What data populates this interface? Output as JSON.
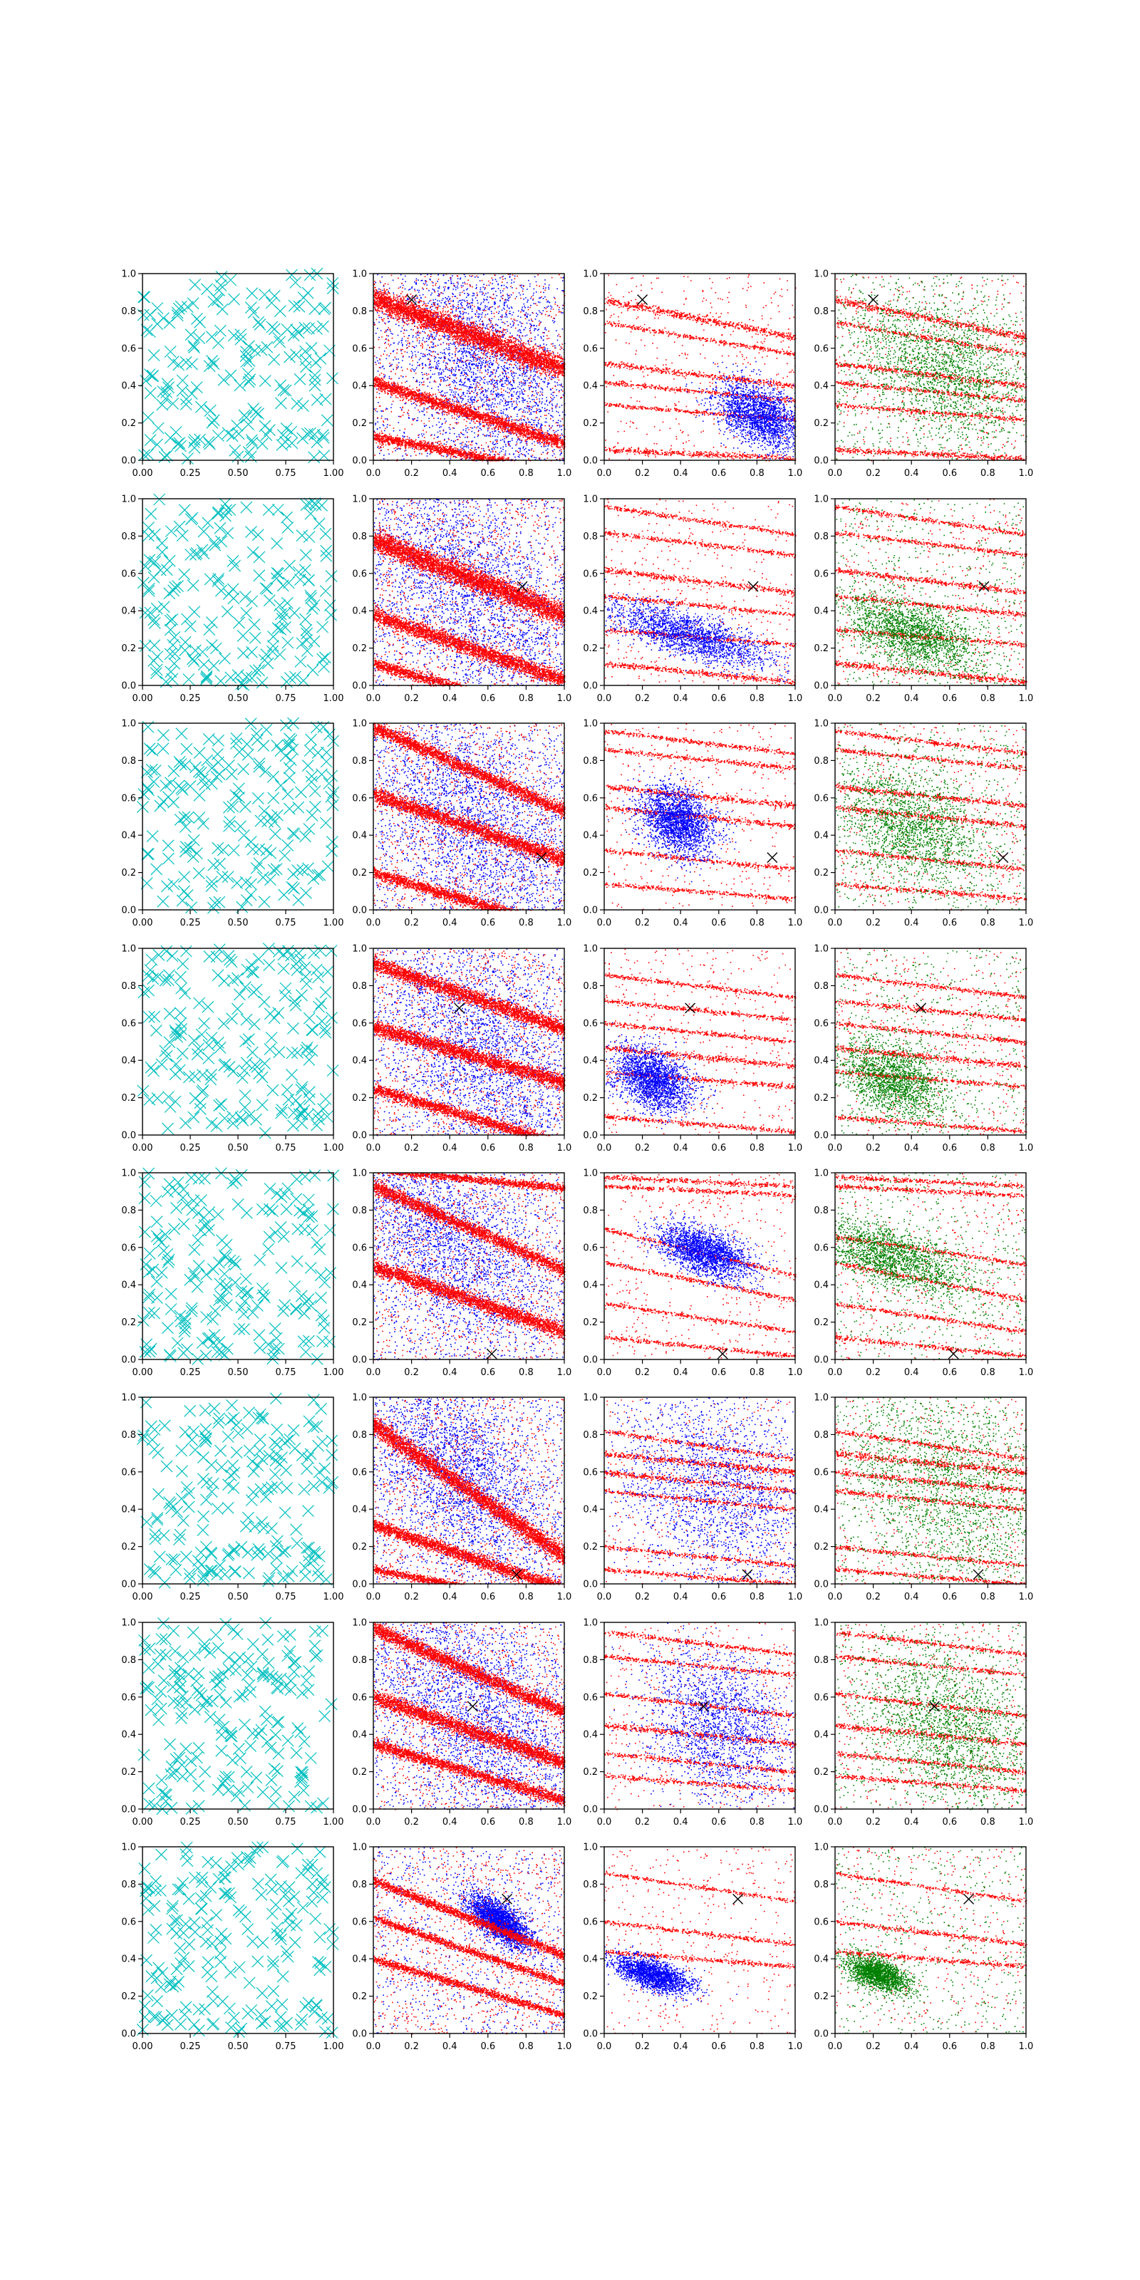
{
  "figure": {
    "title": "",
    "background": "#ffffff",
    "layout": {
      "rows": 8,
      "cols": 4
    }
  },
  "colors": {
    "uniform": "#00bfbf",
    "stripes": "#ff0000",
    "cluster_blue": "#0000ff",
    "cluster_green": "#008000",
    "target_marker": "#000000"
  },
  "chart_data": {
    "type": "scatter",
    "xlim": [
      0,
      1
    ],
    "ylim": [
      0,
      1
    ],
    "grid": false,
    "legend": "none",
    "column_descriptions": [
      "uniform random points drawn as cyan x markers",
      "red stripe samples with blue scattered samples and one black x target",
      "red stripe samples with a dense blue cluster and one black x target",
      "red stripe samples with a dense green cluster and one black x target"
    ],
    "tick_labels": {
      "col0_x": [
        "0.00",
        "0.25",
        "0.50",
        "0.75",
        "1.00"
      ],
      "col0_y": [
        "0.0",
        "0.2",
        "0.4",
        "0.6",
        "0.8",
        "1.0"
      ],
      "other_x": [
        "0.0",
        "0.2",
        "0.4",
        "0.6",
        "0.8",
        "1.0"
      ],
      "other_y": [
        "0.0",
        "0.2",
        "0.4",
        "0.6",
        "0.8",
        "1.0"
      ]
    },
    "rows": [
      {
        "target": [
          0.2,
          0.86
        ],
        "stripes_c1": [
          [
            0.87,
            0.38,
            0.06
          ],
          [
            0.42,
            0.33,
            0.035
          ],
          [
            0.13,
            0.2,
            0.025
          ]
        ],
        "blue_c1": {
          "x": 0.6,
          "y": 0.5,
          "sx": 0.25,
          "sy": 0.28
        },
        "stripes_c2": [
          [
            0.86,
            0.2,
            0.02
          ],
          [
            0.74,
            0.17,
            0.012
          ],
          [
            0.52,
            0.12,
            0.015
          ],
          [
            0.42,
            0.1,
            0.012
          ],
          [
            0.3,
            0.08,
            0.012
          ],
          [
            0.06,
            0.05,
            0.015
          ]
        ],
        "cluster_c2": {
          "x": 0.82,
          "y": 0.24,
          "sx": 0.12,
          "sy": 0.08,
          "n": 2200
        },
        "stripes_c3": [
          [
            0.86,
            0.2,
            0.02
          ],
          [
            0.74,
            0.17,
            0.012
          ],
          [
            0.52,
            0.12,
            0.015
          ],
          [
            0.42,
            0.1,
            0.012
          ],
          [
            0.3,
            0.08,
            0.012
          ],
          [
            0.06,
            0.05,
            0.015
          ]
        ],
        "cluster_c3": {
          "x": 0.55,
          "y": 0.5,
          "sx": 0.22,
          "sy": 0.18,
          "n": 1800
        }
      },
      {
        "target": [
          0.78,
          0.53
        ],
        "stripes_c1": [
          [
            0.38,
            0.35,
            0.04
          ],
          [
            0.12,
            0.3,
            0.03
          ],
          [
            0.78,
            0.4,
            0.06
          ]
        ],
        "blue_c1": {
          "x": 0.5,
          "y": 0.5,
          "sx": 0.3,
          "sy": 0.3
        },
        "stripes_c2": [
          [
            0.96,
            0.15,
            0.012
          ],
          [
            0.82,
            0.12,
            0.012
          ],
          [
            0.62,
            0.12,
            0.015
          ],
          [
            0.48,
            0.1,
            0.012
          ],
          [
            0.3,
            0.08,
            0.012
          ],
          [
            0.12,
            0.1,
            0.015
          ]
        ],
        "cluster_c2": {
          "x": 0.45,
          "y": 0.27,
          "sx": 0.22,
          "sy": 0.06,
          "n": 2000
        },
        "stripes_c3": [
          [
            0.96,
            0.15,
            0.012
          ],
          [
            0.82,
            0.12,
            0.012
          ],
          [
            0.62,
            0.12,
            0.015
          ],
          [
            0.48,
            0.1,
            0.012
          ],
          [
            0.3,
            0.08,
            0.012
          ],
          [
            0.12,
            0.1,
            0.015
          ]
        ],
        "cluster_c3": {
          "x": 0.4,
          "y": 0.28,
          "sx": 0.18,
          "sy": 0.09,
          "n": 2000
        }
      },
      {
        "target": [
          0.88,
          0.28
        ],
        "stripes_c1": [
          [
            0.98,
            0.45,
            0.035
          ],
          [
            0.62,
            0.35,
            0.04
          ],
          [
            0.2,
            0.3,
            0.03
          ]
        ],
        "blue_c1": {
          "x": 0.55,
          "y": 0.45,
          "sx": 0.3,
          "sy": 0.28
        },
        "stripes_c2": [
          [
            0.96,
            0.12,
            0.012
          ],
          [
            0.86,
            0.1,
            0.012
          ],
          [
            0.66,
            0.1,
            0.015
          ],
          [
            0.55,
            0.1,
            0.015
          ],
          [
            0.32,
            0.1,
            0.012
          ],
          [
            0.14,
            0.08,
            0.012
          ]
        ],
        "cluster_c2": {
          "x": 0.38,
          "y": 0.48,
          "sx": 0.1,
          "sy": 0.09,
          "n": 2200
        },
        "stripes_c3": [
          [
            0.96,
            0.12,
            0.012
          ],
          [
            0.86,
            0.1,
            0.012
          ],
          [
            0.66,
            0.1,
            0.015
          ],
          [
            0.55,
            0.1,
            0.015
          ],
          [
            0.32,
            0.1,
            0.012
          ],
          [
            0.14,
            0.08,
            0.012
          ]
        ],
        "cluster_c3": {
          "x": 0.4,
          "y": 0.45,
          "sx": 0.2,
          "sy": 0.15,
          "n": 1800
        }
      },
      {
        "target": [
          0.45,
          0.68
        ],
        "stripes_c1": [
          [
            0.92,
            0.35,
            0.04
          ],
          [
            0.58,
            0.3,
            0.04
          ],
          [
            0.25,
            0.3,
            0.03
          ]
        ],
        "blue_c1": {
          "x": 0.55,
          "y": 0.45,
          "sx": 0.3,
          "sy": 0.3
        },
        "stripes_c2": [
          [
            0.86,
            0.12,
            0.012
          ],
          [
            0.72,
            0.1,
            0.012
          ],
          [
            0.6,
            0.1,
            0.012
          ],
          [
            0.47,
            0.1,
            0.015
          ],
          [
            0.34,
            0.08,
            0.012
          ],
          [
            0.1,
            0.08,
            0.012
          ]
        ],
        "cluster_c2": {
          "x": 0.25,
          "y": 0.3,
          "sx": 0.1,
          "sy": 0.08,
          "n": 2200
        },
        "stripes_c3": [
          [
            0.86,
            0.12,
            0.012
          ],
          [
            0.72,
            0.1,
            0.012
          ],
          [
            0.6,
            0.1,
            0.012
          ],
          [
            0.47,
            0.1,
            0.015
          ],
          [
            0.34,
            0.08,
            0.012
          ],
          [
            0.1,
            0.08,
            0.012
          ]
        ],
        "cluster_c3": {
          "x": 0.3,
          "y": 0.3,
          "sx": 0.14,
          "sy": 0.1,
          "n": 1800
        }
      },
      {
        "target": [
          0.62,
          0.03
        ],
        "stripes_c1": [
          [
            0.93,
            0.45,
            0.035
          ],
          [
            1.02,
            0.1,
            0.02
          ],
          [
            0.5,
            0.35,
            0.04
          ]
        ],
        "blue_c1": {
          "x": 0.35,
          "y": 0.65,
          "sx": 0.3,
          "sy": 0.25
        },
        "stripes_c2": [
          [
            0.93,
            0.05,
            0.012
          ],
          [
            0.98,
            0.05,
            0.012
          ],
          [
            0.7,
            0.25,
            0.012
          ],
          [
            0.52,
            0.2,
            0.012
          ],
          [
            0.3,
            0.15,
            0.012
          ],
          [
            0.12,
            0.1,
            0.012
          ]
        ],
        "cluster_c2": {
          "x": 0.52,
          "y": 0.58,
          "sx": 0.12,
          "sy": 0.06,
          "n": 2200
        },
        "stripes_c3": [
          [
            0.93,
            0.05,
            0.012
          ],
          [
            0.98,
            0.05,
            0.012
          ],
          [
            0.66,
            0.15,
            0.012
          ],
          [
            0.52,
            0.2,
            0.012
          ],
          [
            0.3,
            0.15,
            0.012
          ],
          [
            0.12,
            0.1,
            0.012
          ]
        ],
        "cluster_c3": {
          "x": 0.3,
          "y": 0.55,
          "sx": 0.2,
          "sy": 0.08,
          "n": 1800
        }
      },
      {
        "target": [
          0.75,
          0.05
        ],
        "stripes_c1": [
          [
            0.85,
            0.7,
            0.05
          ],
          [
            0.32,
            0.35,
            0.035
          ],
          [
            0.08,
            0.2,
            0.02
          ]
        ],
        "blue_c1": {
          "x": 0.45,
          "y": 0.6,
          "sx": 0.25,
          "sy": 0.25
        },
        "stripes_c2": [
          [
            0.82,
            0.15,
            0.012
          ],
          [
            0.7,
            0.1,
            0.018
          ],
          [
            0.6,
            0.1,
            0.015
          ],
          [
            0.5,
            0.1,
            0.012
          ],
          [
            0.2,
            0.1,
            0.012
          ],
          [
            0.08,
            0.08,
            0.012
          ]
        ],
        "cluster_c2": {
          "x": 0.6,
          "y": 0.5,
          "sx": 0.28,
          "sy": 0.28,
          "n": 2200
        },
        "stripes_c3": [
          [
            0.82,
            0.15,
            0.012
          ],
          [
            0.7,
            0.1,
            0.018
          ],
          [
            0.6,
            0.1,
            0.015
          ],
          [
            0.5,
            0.1,
            0.012
          ],
          [
            0.2,
            0.1,
            0.012
          ],
          [
            0.08,
            0.08,
            0.012
          ]
        ],
        "cluster_c3": {
          "x": 0.6,
          "y": 0.5,
          "sx": 0.28,
          "sy": 0.28,
          "n": 1800
        }
      },
      {
        "target": [
          0.52,
          0.55
        ],
        "stripes_c1": [
          [
            0.97,
            0.45,
            0.04
          ],
          [
            0.6,
            0.35,
            0.04
          ],
          [
            0.35,
            0.3,
            0.03
          ]
        ],
        "blue_c1": {
          "x": 0.55,
          "y": 0.5,
          "sx": 0.28,
          "sy": 0.28
        },
        "stripes_c2": [
          [
            0.95,
            0.12,
            0.012
          ],
          [
            0.82,
            0.1,
            0.012
          ],
          [
            0.62,
            0.12,
            0.012
          ],
          [
            0.45,
            0.1,
            0.015
          ],
          [
            0.3,
            0.1,
            0.012
          ],
          [
            0.18,
            0.08,
            0.012
          ]
        ],
        "cluster_c2": {
          "x": 0.6,
          "y": 0.45,
          "sx": 0.2,
          "sy": 0.2,
          "n": 2000
        },
        "stripes_c3": [
          [
            0.95,
            0.12,
            0.012
          ],
          [
            0.82,
            0.1,
            0.012
          ],
          [
            0.62,
            0.12,
            0.012
          ],
          [
            0.45,
            0.1,
            0.015
          ],
          [
            0.3,
            0.1,
            0.012
          ],
          [
            0.18,
            0.08,
            0.012
          ]
        ],
        "cluster_c3": {
          "x": 0.6,
          "y": 0.45,
          "sx": 0.22,
          "sy": 0.2,
          "n": 1800
        }
      },
      {
        "target": [
          0.7,
          0.72
        ],
        "stripes_c1": [
          [
            0.82,
            0.4,
            0.025
          ],
          [
            0.62,
            0.35,
            0.02
          ],
          [
            0.4,
            0.3,
            0.02
          ]
        ],
        "blue_c1": {
          "x": 0.66,
          "y": 0.6,
          "sx": 0.08,
          "sy": 0.05
        },
        "stripes_c2": [
          [
            0.86,
            0.15,
            0.01
          ],
          [
            0.6,
            0.12,
            0.012
          ],
          [
            0.44,
            0.08,
            0.012
          ]
        ],
        "cluster_c2": {
          "x": 0.25,
          "y": 0.32,
          "sx": 0.1,
          "sy": 0.04,
          "n": 2000
        },
        "stripes_c3": [
          [
            0.86,
            0.15,
            0.01
          ],
          [
            0.6,
            0.12,
            0.012
          ],
          [
            0.44,
            0.08,
            0.012
          ]
        ],
        "cluster_c3": {
          "x": 0.22,
          "y": 0.32,
          "sx": 0.08,
          "sy": 0.04,
          "n": 1800
        }
      }
    ]
  }
}
